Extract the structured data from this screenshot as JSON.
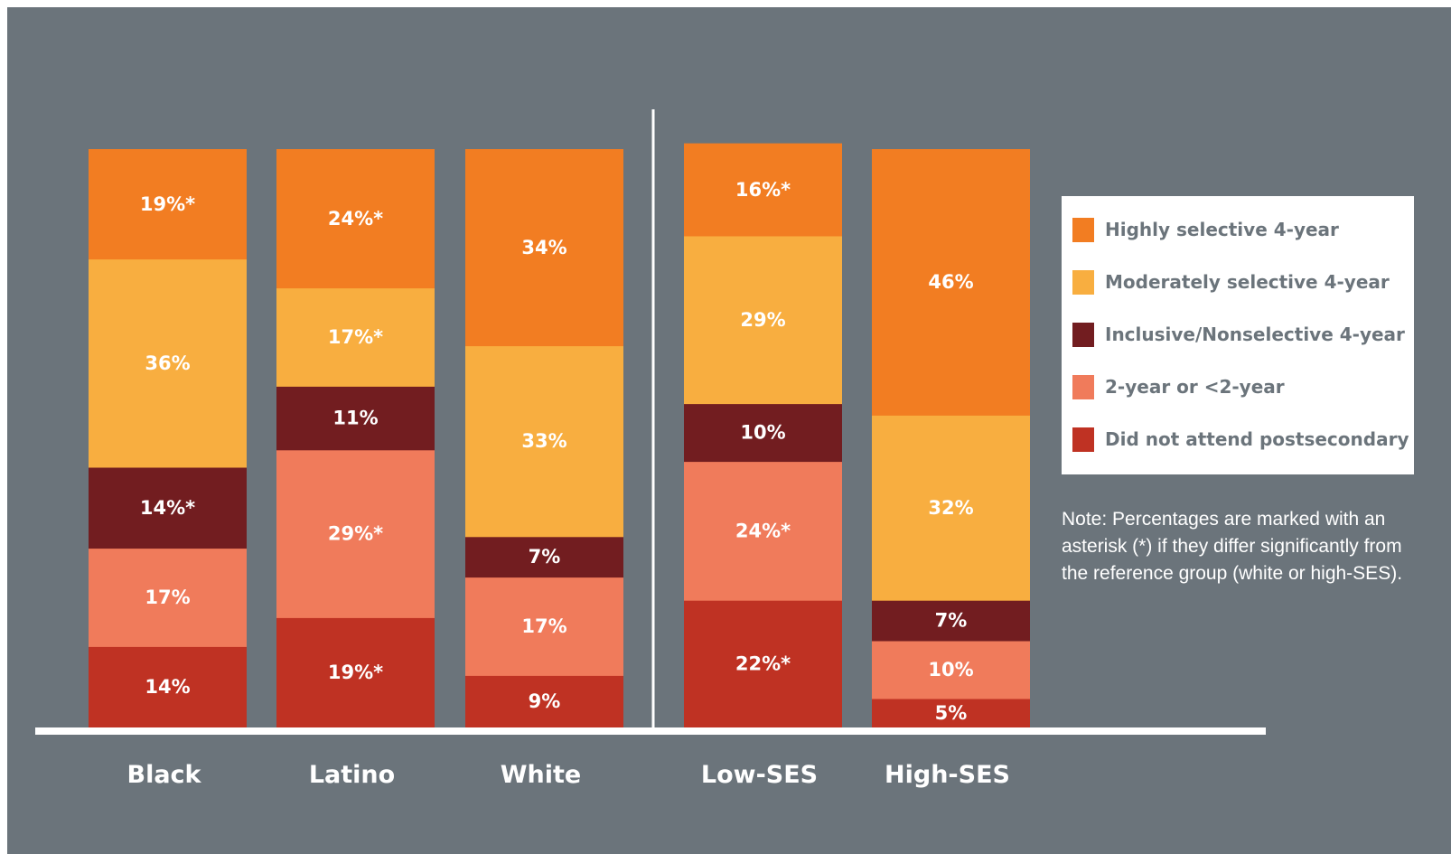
{
  "chart_data": {
    "type": "bar",
    "stacked": true,
    "categories": [
      "Black",
      "Latino",
      "White",
      "Low-SES",
      "High-SES"
    ],
    "groups": [
      [
        "Black",
        "Latino",
        "White"
      ],
      [
        "Low-SES",
        "High-SES"
      ]
    ],
    "series": [
      {
        "name": "Did not attend postsecondary",
        "color": "#bf3223",
        "values": [
          14,
          19,
          9,
          22,
          5
        ],
        "labels": [
          "14%",
          "19%*",
          "9%",
          "22%*",
          "5%"
        ]
      },
      {
        "name": "2-year or <2-year",
        "color": "#f07b5b",
        "values": [
          17,
          29,
          17,
          24,
          10
        ],
        "labels": [
          "17%",
          "29%*",
          "17%",
          "24%*",
          "10%"
        ]
      },
      {
        "name": "Inclusive/Nonselective 4-year",
        "color": "#721d20",
        "values": [
          14,
          11,
          7,
          10,
          7
        ],
        "labels": [
          "14%*",
          "11%",
          "7%",
          "10%",
          "7%"
        ]
      },
      {
        "name": "Moderately selective 4-year",
        "color": "#f8ae40",
        "values": [
          36,
          17,
          33,
          29,
          32
        ],
        "labels": [
          "36%",
          "17%*",
          "33%",
          "29%",
          "32%"
        ]
      },
      {
        "name": "Highly selective 4-year",
        "color": "#f27d22",
        "values": [
          19,
          24,
          34,
          16,
          46
        ],
        "labels": [
          "19%*",
          "24%*",
          "34%",
          "16%*",
          "46%"
        ]
      }
    ],
    "legend": {
      "position": "right",
      "items": [
        {
          "label": "Highly selective 4-year",
          "color": "#f27d22"
        },
        {
          "label": "Moderately selective 4-year",
          "color": "#f8ae40"
        },
        {
          "label": "Inclusive/Nonselective 4-year",
          "color": "#721d20"
        },
        {
          "label": "2-year or <2-year",
          "color": "#f07b5b"
        },
        {
          "label": "Did not attend postsecondary",
          "color": "#bf3223"
        }
      ]
    },
    "note": "Note: Percentages are marked with an asterisk (*) if they differ significantly from the reference group (white or high-SES).",
    "grid": false,
    "background_color": "#6b747b"
  }
}
